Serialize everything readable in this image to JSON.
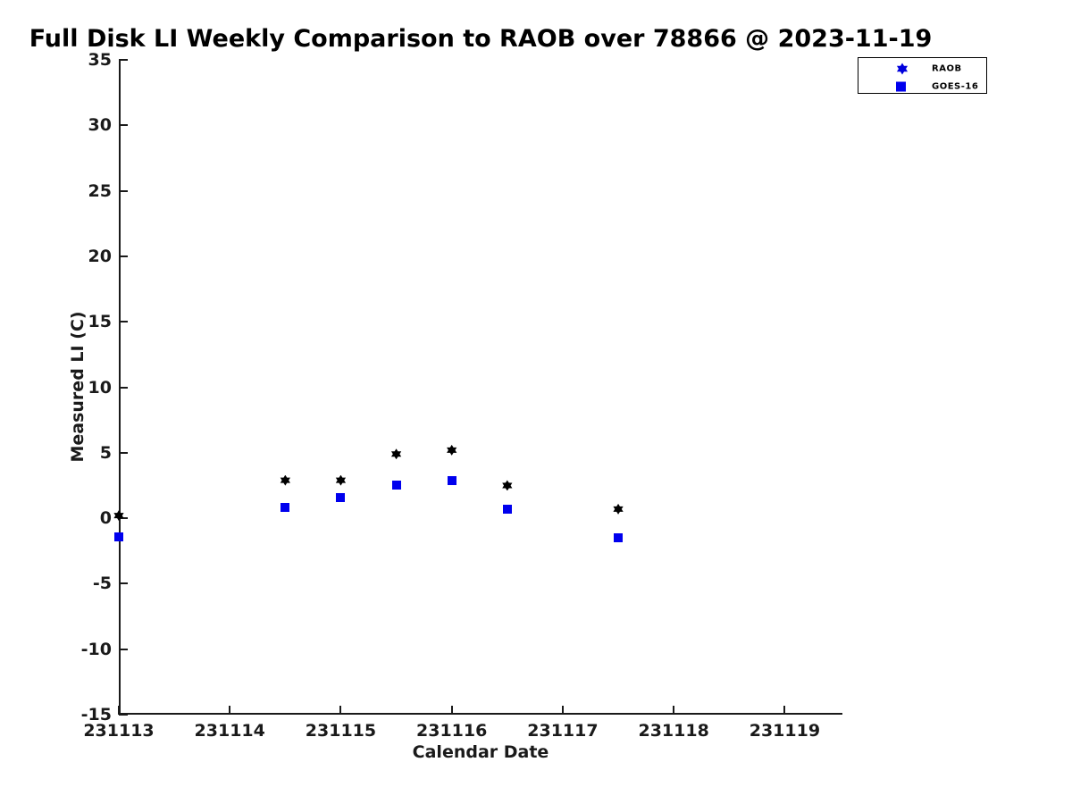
{
  "figure": {
    "title": "Full Disk LI Weekly Comparison to RAOB over 78866 @ 2023-11-19"
  },
  "chart_data": {
    "type": "scatter",
    "title": "Full Disk LI Weekly Comparison to RAOB over 78866 @ 2023-11-19",
    "xlabel": "Calendar Date",
    "ylabel": "Measured LI (C)",
    "xlim": [
      231113,
      231119.52
    ],
    "ylim": [
      -15,
      35
    ],
    "x_ticks": [
      231113,
      231114,
      231115,
      231116,
      231117,
      231118,
      231119
    ],
    "y_ticks": [
      35,
      30,
      25,
      20,
      15,
      10,
      5,
      0,
      -5,
      -10,
      -15
    ],
    "grid": false,
    "background": "#ffffff",
    "axis_color": "#1a1a1a",
    "legend_position": "top-right-outside",
    "series": [
      {
        "name": "RAOB",
        "marker": "hexagram",
        "color": "#000000",
        "x": [
          231113.0,
          231114.5,
          231115.0,
          231115.5,
          231116.0,
          231116.5,
          231117.5
        ],
        "y": [
          0.2,
          2.9,
          2.9,
          4.9,
          5.2,
          2.5,
          0.7
        ]
      },
      {
        "name": "GOES-16",
        "marker": "square",
        "color": "#0000ee",
        "x": [
          231113.0,
          231114.5,
          231115.0,
          231115.5,
          231116.0,
          231116.5,
          231117.5
        ],
        "y": [
          -1.4,
          0.8,
          1.6,
          2.5,
          2.9,
          0.7,
          -1.5
        ]
      }
    ]
  },
  "legend": {
    "items": [
      {
        "label": "RAOB",
        "marker": "hexagram",
        "marker_color": "#0000dd"
      },
      {
        "label": "GOES-16",
        "marker": "square",
        "marker_color": "#0000ee"
      }
    ]
  }
}
